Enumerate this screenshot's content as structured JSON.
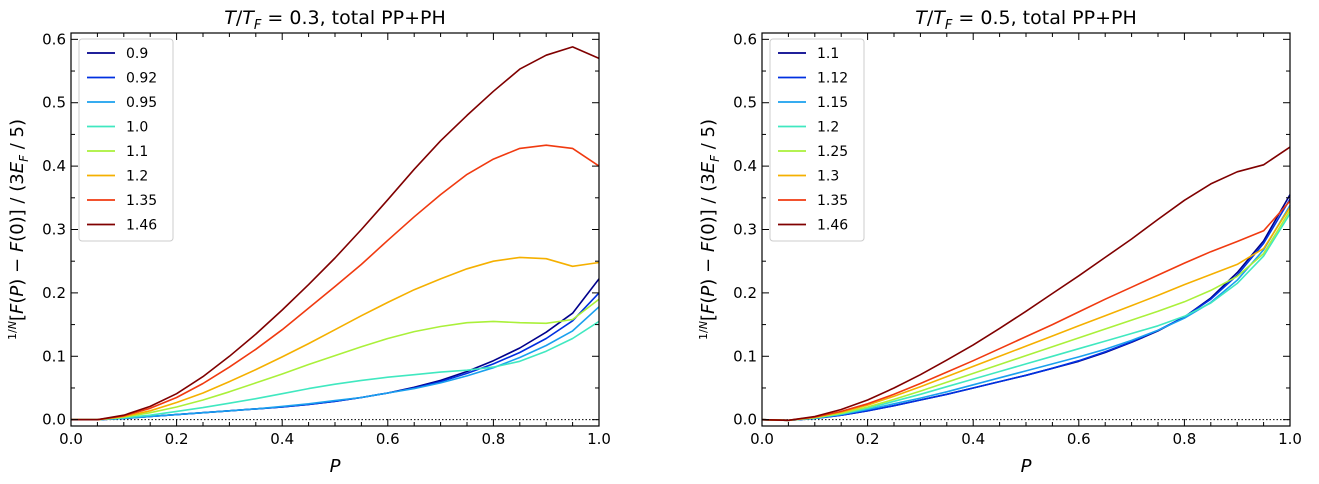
{
  "chart_data": [
    {
      "type": "line",
      "title": "T/T_F = 0.3, total PP+PH",
      "xlabel": "P",
      "ylabel": "(1/N)[F(P) − F(0)] / (3E_F / 5)",
      "xlim": [
        0.0,
        1.0
      ],
      "ylim": [
        -0.01,
        0.61
      ],
      "x_ticks": [
        "0.0",
        "0.2",
        "0.4",
        "0.6",
        "0.8",
        "1.0"
      ],
      "y_ticks": [
        "0.0",
        "0.1",
        "0.2",
        "0.3",
        "0.4",
        "0.5",
        "0.6"
      ],
      "legend_position": "top-left",
      "reference_line": {
        "y": 0.0,
        "style": "dotted"
      },
      "x": [
        0.0,
        0.05,
        0.1,
        0.15,
        0.2,
        0.25,
        0.3,
        0.35,
        0.4,
        0.45,
        0.5,
        0.55,
        0.6,
        0.65,
        0.7,
        0.75,
        0.8,
        0.85,
        0.9,
        0.95,
        1.0
      ],
      "series": [
        {
          "name": "0.9",
          "color": "#00008b",
          "values": [
            0.0,
            0.0,
            0.002,
            0.005,
            0.008,
            0.011,
            0.014,
            0.017,
            0.02,
            0.024,
            0.029,
            0.035,
            0.042,
            0.051,
            0.062,
            0.076,
            0.093,
            0.113,
            0.138,
            0.168,
            0.222
          ]
        },
        {
          "name": "0.92",
          "color": "#0030e0",
          "values": [
            0.0,
            0.0,
            0.002,
            0.005,
            0.008,
            0.011,
            0.014,
            0.017,
            0.02,
            0.024,
            0.029,
            0.035,
            0.042,
            0.05,
            0.06,
            0.073,
            0.088,
            0.106,
            0.128,
            0.156,
            0.2
          ]
        },
        {
          "name": "0.95",
          "color": "#1aa0ee",
          "values": [
            0.0,
            0.0,
            0.002,
            0.005,
            0.008,
            0.011,
            0.014,
            0.017,
            0.021,
            0.025,
            0.03,
            0.035,
            0.042,
            0.049,
            0.058,
            0.069,
            0.082,
            0.098,
            0.117,
            0.14,
            0.178
          ]
        },
        {
          "name": "1.0",
          "color": "#40e8c0",
          "values": [
            0.0,
            0.0,
            0.003,
            0.007,
            0.013,
            0.019,
            0.026,
            0.033,
            0.041,
            0.049,
            0.056,
            0.062,
            0.067,
            0.071,
            0.075,
            0.078,
            0.083,
            0.092,
            0.108,
            0.128,
            0.155
          ]
        },
        {
          "name": "1.1",
          "color": "#aaf03a",
          "values": [
            0.0,
            0.0,
            0.004,
            0.011,
            0.02,
            0.031,
            0.044,
            0.058,
            0.072,
            0.087,
            0.101,
            0.115,
            0.128,
            0.139,
            0.147,
            0.153,
            0.155,
            0.153,
            0.152,
            0.158,
            0.19
          ]
        },
        {
          "name": "1.2",
          "color": "#f5b000",
          "values": [
            0.0,
            0.0,
            0.005,
            0.014,
            0.027,
            0.042,
            0.06,
            0.079,
            0.099,
            0.12,
            0.142,
            0.164,
            0.185,
            0.205,
            0.222,
            0.238,
            0.25,
            0.256,
            0.254,
            0.242,
            0.248
          ]
        },
        {
          "name": "1.35",
          "color": "#f03a10",
          "values": [
            0.0,
            0.0,
            0.006,
            0.018,
            0.035,
            0.057,
            0.083,
            0.111,
            0.142,
            0.176,
            0.21,
            0.245,
            0.283,
            0.32,
            0.355,
            0.387,
            0.411,
            0.428,
            0.433,
            0.428,
            0.4
          ]
        },
        {
          "name": "1.46",
          "color": "#800000",
          "values": [
            0.0,
            0.0,
            0.007,
            0.021,
            0.041,
            0.068,
            0.1,
            0.135,
            0.173,
            0.213,
            0.255,
            0.3,
            0.347,
            0.395,
            0.44,
            0.48,
            0.518,
            0.553,
            0.575,
            0.588,
            0.57
          ]
        }
      ]
    },
    {
      "type": "line",
      "title": "T/T_F = 0.5, total PP+PH",
      "xlabel": "P",
      "ylabel": "(1/N)[F(P) − F(0)] / (3E_F / 5)",
      "xlim": [
        0.0,
        1.0
      ],
      "ylim": [
        -0.01,
        0.61
      ],
      "x_ticks": [
        "0.0",
        "0.2",
        "0.4",
        "0.6",
        "0.8",
        "1.0"
      ],
      "y_ticks": [
        "0.0",
        "0.1",
        "0.2",
        "0.3",
        "0.4",
        "0.5",
        "0.6"
      ],
      "legend_position": "top-left",
      "reference_line": {
        "y": 0.0,
        "style": "dotted"
      },
      "x": [
        0.0,
        0.05,
        0.1,
        0.15,
        0.2,
        0.25,
        0.3,
        0.35,
        0.4,
        0.45,
        0.5,
        0.55,
        0.6,
        0.65,
        0.7,
        0.75,
        0.8,
        0.85,
        0.9,
        0.95,
        1.0
      ],
      "series": [
        {
          "name": "1.1",
          "color": "#00008b",
          "values": [
            0.0,
            -0.001,
            0.002,
            0.007,
            0.014,
            0.022,
            0.031,
            0.04,
            0.05,
            0.06,
            0.07,
            0.081,
            0.092,
            0.106,
            0.122,
            0.14,
            0.162,
            0.192,
            0.232,
            0.282,
            0.355
          ]
        },
        {
          "name": "1.12",
          "color": "#0030e0",
          "values": [
            0.0,
            -0.001,
            0.002,
            0.007,
            0.014,
            0.022,
            0.031,
            0.04,
            0.05,
            0.06,
            0.07,
            0.081,
            0.093,
            0.107,
            0.123,
            0.141,
            0.162,
            0.19,
            0.228,
            0.278,
            0.348
          ]
        },
        {
          "name": "1.15",
          "color": "#1aa0ee",
          "values": [
            0.0,
            -0.001,
            0.002,
            0.008,
            0.016,
            0.025,
            0.034,
            0.044,
            0.055,
            0.066,
            0.077,
            0.088,
            0.099,
            0.111,
            0.125,
            0.141,
            0.16,
            0.185,
            0.22,
            0.268,
            0.338
          ]
        },
        {
          "name": "1.2",
          "color": "#40e8c0",
          "values": [
            0.0,
            -0.001,
            0.003,
            0.009,
            0.018,
            0.029,
            0.04,
            0.052,
            0.064,
            0.076,
            0.088,
            0.1,
            0.112,
            0.124,
            0.136,
            0.148,
            0.163,
            0.184,
            0.215,
            0.258,
            0.325
          ]
        },
        {
          "name": "1.25",
          "color": "#aaf03a",
          "values": [
            0.0,
            -0.001,
            0.003,
            0.01,
            0.02,
            0.032,
            0.045,
            0.059,
            0.073,
            0.087,
            0.101,
            0.115,
            0.129,
            0.143,
            0.157,
            0.171,
            0.186,
            0.204,
            0.226,
            0.262,
            0.33
          ]
        },
        {
          "name": "1.3",
          "color": "#f5b000",
          "values": [
            0.0,
            -0.001,
            0.004,
            0.012,
            0.023,
            0.037,
            0.052,
            0.068,
            0.084,
            0.1,
            0.116,
            0.132,
            0.148,
            0.164,
            0.18,
            0.196,
            0.213,
            0.229,
            0.245,
            0.27,
            0.335
          ]
        },
        {
          "name": "1.35",
          "color": "#f03a10",
          "values": [
            0.0,
            -0.001,
            0.004,
            0.013,
            0.025,
            0.04,
            0.057,
            0.075,
            0.093,
            0.112,
            0.131,
            0.15,
            0.17,
            0.19,
            0.209,
            0.228,
            0.247,
            0.265,
            0.281,
            0.298,
            0.345
          ]
        },
        {
          "name": "1.46",
          "color": "#800000",
          "values": [
            0.0,
            -0.001,
            0.005,
            0.016,
            0.031,
            0.05,
            0.071,
            0.094,
            0.118,
            0.144,
            0.171,
            0.199,
            0.227,
            0.256,
            0.285,
            0.316,
            0.346,
            0.372,
            0.391,
            0.402,
            0.43
          ]
        }
      ]
    }
  ]
}
